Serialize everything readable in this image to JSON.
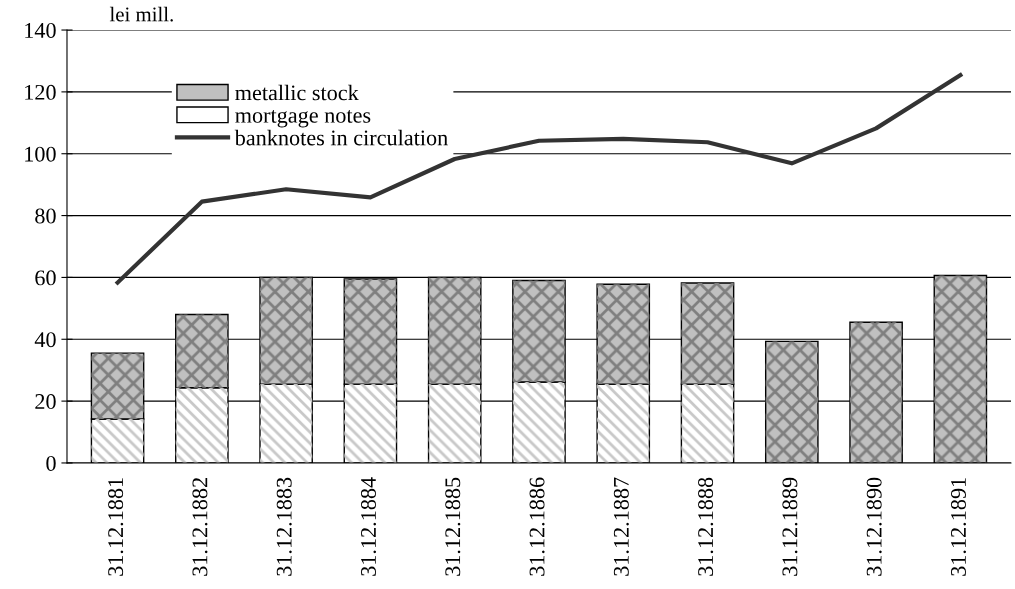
{
  "chart_data": {
    "type": "bar",
    "stacked": true,
    "ylabel": "lei mill.",
    "categories": [
      "31.12.1881",
      "31.12.1882",
      "31.12.1883",
      "31.12.1884",
      "31.12.1885",
      "31.12.1886",
      "31.12.1887",
      "31.12.1888",
      "31.12.1889",
      "31.12.1890",
      "31.12.1891"
    ],
    "series": [
      {
        "name": "mortgage notes",
        "color": "#ffffff",
        "values": [
          14.2,
          24.3,
          25.5,
          25.5,
          25.5,
          26.2,
          25.5,
          25.5,
          null,
          null,
          null
        ]
      },
      {
        "name": "metallic stock",
        "color": "#c0c0c0",
        "values": [
          21.3,
          23.7,
          34.5,
          34.0,
          34.5,
          32.8,
          32.3,
          32.7,
          39.3,
          45.5,
          60.6
        ]
      },
      {
        "name": "banknotes in circulation",
        "type": "line",
        "color": "#333333",
        "values": [
          58.3,
          84.5,
          88.5,
          85.9,
          98.3,
          104.2,
          104.8,
          103.7,
          96.9,
          108.2,
          125.4
        ]
      }
    ],
    "ylim": [
      0,
      140
    ],
    "yticks": [
      0,
      20,
      40,
      60,
      80,
      100,
      120,
      140
    ],
    "grid": "y",
    "legend": "top left",
    "marker": "none",
    "line_style": "solid"
  }
}
